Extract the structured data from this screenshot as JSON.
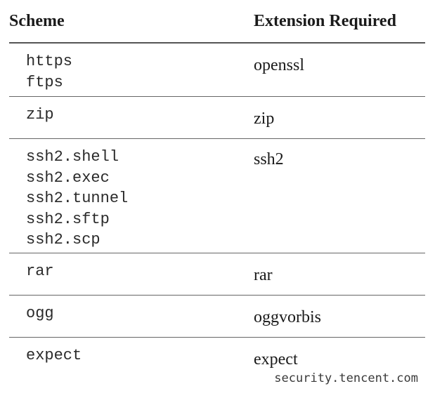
{
  "table": {
    "headers": {
      "scheme": "Scheme",
      "extension": "Extension Required"
    },
    "rows": [
      {
        "schemes": [
          "https",
          "ftps"
        ],
        "extension": "openssl"
      },
      {
        "schemes": [
          "zip"
        ],
        "extension": "zip"
      },
      {
        "schemes": [
          "ssh2.shell",
          "ssh2.exec",
          "ssh2.tunnel",
          "ssh2.sftp",
          "ssh2.scp"
        ],
        "extension": "ssh2"
      },
      {
        "schemes": [
          "rar"
        ],
        "extension": "rar"
      },
      {
        "schemes": [
          "ogg"
        ],
        "extension": "oggvorbis"
      },
      {
        "schemes": [
          "expect"
        ],
        "extension": "expect"
      }
    ]
  },
  "watermark": "security.tencent.com"
}
